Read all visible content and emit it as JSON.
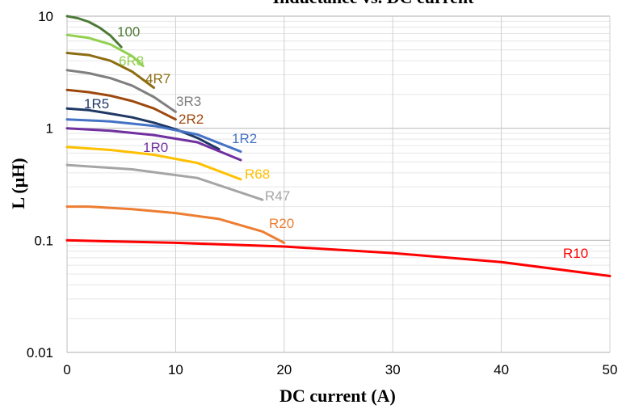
{
  "chart_data": {
    "type": "line",
    "title": "Inductance vs. DC current",
    "xlabel": "DC current (A)",
    "ylabel": "L (μH)",
    "xlim": [
      0,
      50
    ],
    "ylim": [
      0.01,
      10
    ],
    "y_scale": "log",
    "grid": true,
    "x_ticks": [
      "0",
      "10",
      "20",
      "30",
      "40",
      "50"
    ],
    "y_ticks": [
      "0.01",
      "0.1",
      "1",
      "10"
    ],
    "series": [
      {
        "name": "100",
        "color": "#4e7a38",
        "x": [
          0,
          1,
          2,
          3,
          4,
          5
        ],
        "y": [
          10,
          9.6,
          8.9,
          7.9,
          6.7,
          5.3
        ]
      },
      {
        "name": "6R8",
        "color": "#92d050",
        "x": [
          0,
          2,
          4,
          6,
          7
        ],
        "y": [
          6.8,
          6.4,
          5.6,
          4.4,
          3.6
        ]
      },
      {
        "name": "4R7",
        "color": "#8c6d12",
        "x": [
          0,
          2,
          4,
          6,
          8
        ],
        "y": [
          4.7,
          4.5,
          4.0,
          3.2,
          2.3
        ]
      },
      {
        "name": "3R3",
        "color": "#7f7f7f",
        "x": [
          0,
          2,
          4,
          6,
          8,
          10
        ],
        "y": [
          3.3,
          3.1,
          2.8,
          2.4,
          1.9,
          1.4
        ]
      },
      {
        "name": "2R2",
        "color": "#9e480e",
        "x": [
          0,
          2,
          4,
          6,
          8,
          10
        ],
        "y": [
          2.2,
          2.1,
          1.95,
          1.75,
          1.5,
          1.2
        ]
      },
      {
        "name": "1R5",
        "color": "#1f3864",
        "x": [
          0,
          2,
          4,
          6,
          8,
          10,
          12,
          14
        ],
        "y": [
          1.5,
          1.45,
          1.35,
          1.25,
          1.12,
          0.98,
          0.82,
          0.65
        ]
      },
      {
        "name": "1R2",
        "color": "#4472c4",
        "x": [
          0,
          4,
          8,
          12,
          16
        ],
        "y": [
          1.2,
          1.15,
          1.05,
          0.88,
          0.62
        ]
      },
      {
        "name": "1R0",
        "color": "#7030a0",
        "x": [
          0,
          4,
          8,
          12,
          16
        ],
        "y": [
          1.0,
          0.95,
          0.87,
          0.75,
          0.52
        ]
      },
      {
        "name": "R68",
        "color": "#ffc000",
        "x": [
          0,
          4,
          8,
          12,
          16
        ],
        "y": [
          0.68,
          0.64,
          0.58,
          0.49,
          0.35
        ]
      },
      {
        "name": "R47",
        "color": "#a5a5a5",
        "x": [
          0,
          6,
          12,
          18
        ],
        "y": [
          0.47,
          0.43,
          0.36,
          0.23
        ]
      },
      {
        "name": "R20",
        "color": "#ed7d31",
        "x": [
          0,
          2,
          6,
          10,
          14,
          18,
          20
        ],
        "y": [
          0.2,
          0.2,
          0.19,
          0.175,
          0.155,
          0.12,
          0.095
        ]
      },
      {
        "name": "R10",
        "color": "#ff0000",
        "x": [
          0,
          10,
          20,
          30,
          40,
          50
        ],
        "y": [
          0.1,
          0.095,
          0.088,
          0.077,
          0.064,
          0.048
        ]
      }
    ]
  }
}
